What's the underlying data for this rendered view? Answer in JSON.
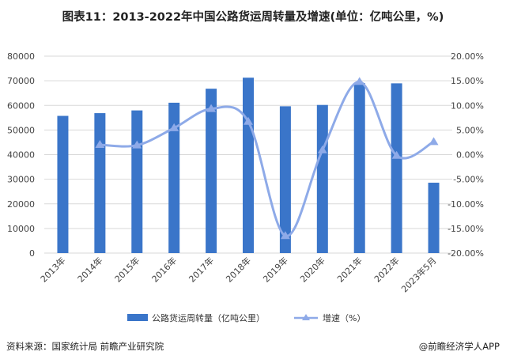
{
  "title": "图表11：2013-2022年中国公路货运周转量及增速(单位：亿吨公里，%)",
  "source": "资料来源：国家统计局 前瞻产业研究院",
  "brand": "@前瞻经济学人APP",
  "watermark": "前瞻产业研究院",
  "chart_data": {
    "type": "bar",
    "title": "2013-2022年中国公路货运周转量及增速",
    "categories": [
      "2013年",
      "2014年",
      "2015年",
      "2016年",
      "2017年",
      "2018年",
      "2019年",
      "2020年",
      "2021年",
      "2022年",
      "2023年5月"
    ],
    "series": [
      {
        "name": "公路货运周转量（亿吨公里）",
        "type": "bar",
        "axis": "left",
        "color": "#3a75c9",
        "values": [
          55738,
          56847,
          57956,
          61080,
          66772,
          71249,
          59636,
          60172,
          69088,
          68958,
          28589
        ]
      },
      {
        "name": "增速（%）",
        "type": "line",
        "axis": "right",
        "color": "#8eaae8",
        "values": [
          null,
          2.0,
          1.9,
          5.4,
          9.3,
          6.7,
          -16.5,
          0.9,
          14.8,
          -0.2,
          2.6
        ]
      }
    ],
    "yleft": {
      "ylim": [
        0,
        80000
      ],
      "ticks": [
        "0",
        "10000",
        "20000",
        "30000",
        "40000",
        "50000",
        "60000",
        "70000",
        "80000"
      ]
    },
    "yright": {
      "ylim": [
        -20,
        20
      ],
      "ticks": [
        "-20.00%",
        "-15.00%",
        "-10.00%",
        "-5.00%",
        "0.00%",
        "5.00%",
        "10.00%",
        "15.00%",
        "20.00%"
      ]
    },
    "grid": true,
    "legend": "bottom"
  }
}
